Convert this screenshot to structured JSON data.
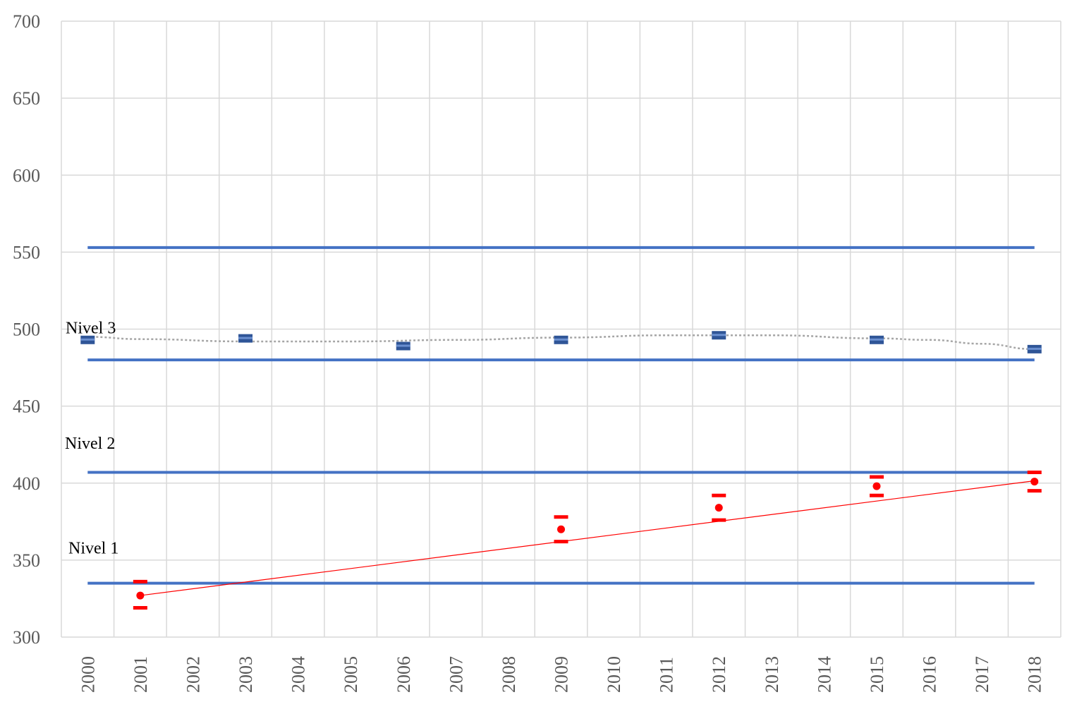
{
  "chart_data": {
    "type": "scatter",
    "ylim": [
      300,
      700
    ],
    "y_ticks": [
      300,
      350,
      400,
      450,
      500,
      550,
      600,
      650,
      700
    ],
    "categories": [
      "2000",
      "2001",
      "2002",
      "2003",
      "2004",
      "2005",
      "2006",
      "2007",
      "2008",
      "2009",
      "2010",
      "2011",
      "2012",
      "2013",
      "2014",
      "2015",
      "2016",
      "2017",
      "2018"
    ],
    "grid": true,
    "threshold_lines": [
      {
        "value": 553,
        "color": "#4472c4"
      },
      {
        "value": 480,
        "color": "#4472c4"
      },
      {
        "value": 407,
        "color": "#4472c4"
      },
      {
        "value": 335,
        "color": "#4472c4"
      }
    ],
    "level_labels": [
      {
        "text": "Nivel 3",
        "value": 501
      },
      {
        "text": "Nivel 2",
        "value": 426
      },
      {
        "text": "Nivel 1",
        "value": 358
      }
    ],
    "series": [
      {
        "color": "#2f5597",
        "marker": "square-bar",
        "points": [
          {
            "x": "2000",
            "y": 493
          },
          {
            "x": "2003",
            "y": 494
          },
          {
            "x": "2006",
            "y": 489
          },
          {
            "x": "2009",
            "y": 493
          },
          {
            "x": "2012",
            "y": 496
          },
          {
            "x": "2015",
            "y": 493
          },
          {
            "x": "2018",
            "y": 487
          }
        ],
        "trend": {
          "type": "polynomial",
          "color": "#a6a6a6",
          "style": "dotted",
          "points": [
            {
              "x": "2000",
              "y": 495
            },
            {
              "x": "2001",
              "y": 493.5
            },
            {
              "x": "2003",
              "y": 492
            },
            {
              "x": "2005",
              "y": 492
            },
            {
              "x": "2007",
              "y": 493
            },
            {
              "x": "2009",
              "y": 494.5
            },
            {
              "x": "2011",
              "y": 496
            },
            {
              "x": "2013",
              "y": 496
            },
            {
              "x": "2015",
              "y": 494
            },
            {
              "x": "2016",
              "y": 493
            },
            {
              "x": "2017",
              "y": 490.5
            },
            {
              "x": "2018",
              "y": 487
            }
          ]
        }
      },
      {
        "color": "#ff0000",
        "marker": "circle-errorbar",
        "points": [
          {
            "x": "2001",
            "y": 327,
            "lower": 319,
            "upper": 336
          },
          {
            "x": "2009",
            "y": 370,
            "lower": 362,
            "upper": 378
          },
          {
            "x": "2012",
            "y": 384,
            "lower": 376,
            "upper": 392
          },
          {
            "x": "2015",
            "y": 398,
            "lower": 392,
            "upper": 404
          },
          {
            "x": "2018",
            "y": 401,
            "lower": 395,
            "upper": 407
          }
        ],
        "trend": {
          "type": "linear",
          "color": "#ff0000",
          "style": "solid",
          "from": {
            "x": "2001",
            "y": 327
          },
          "to": {
            "x": "2018",
            "y": 401.5
          }
        }
      }
    ]
  }
}
